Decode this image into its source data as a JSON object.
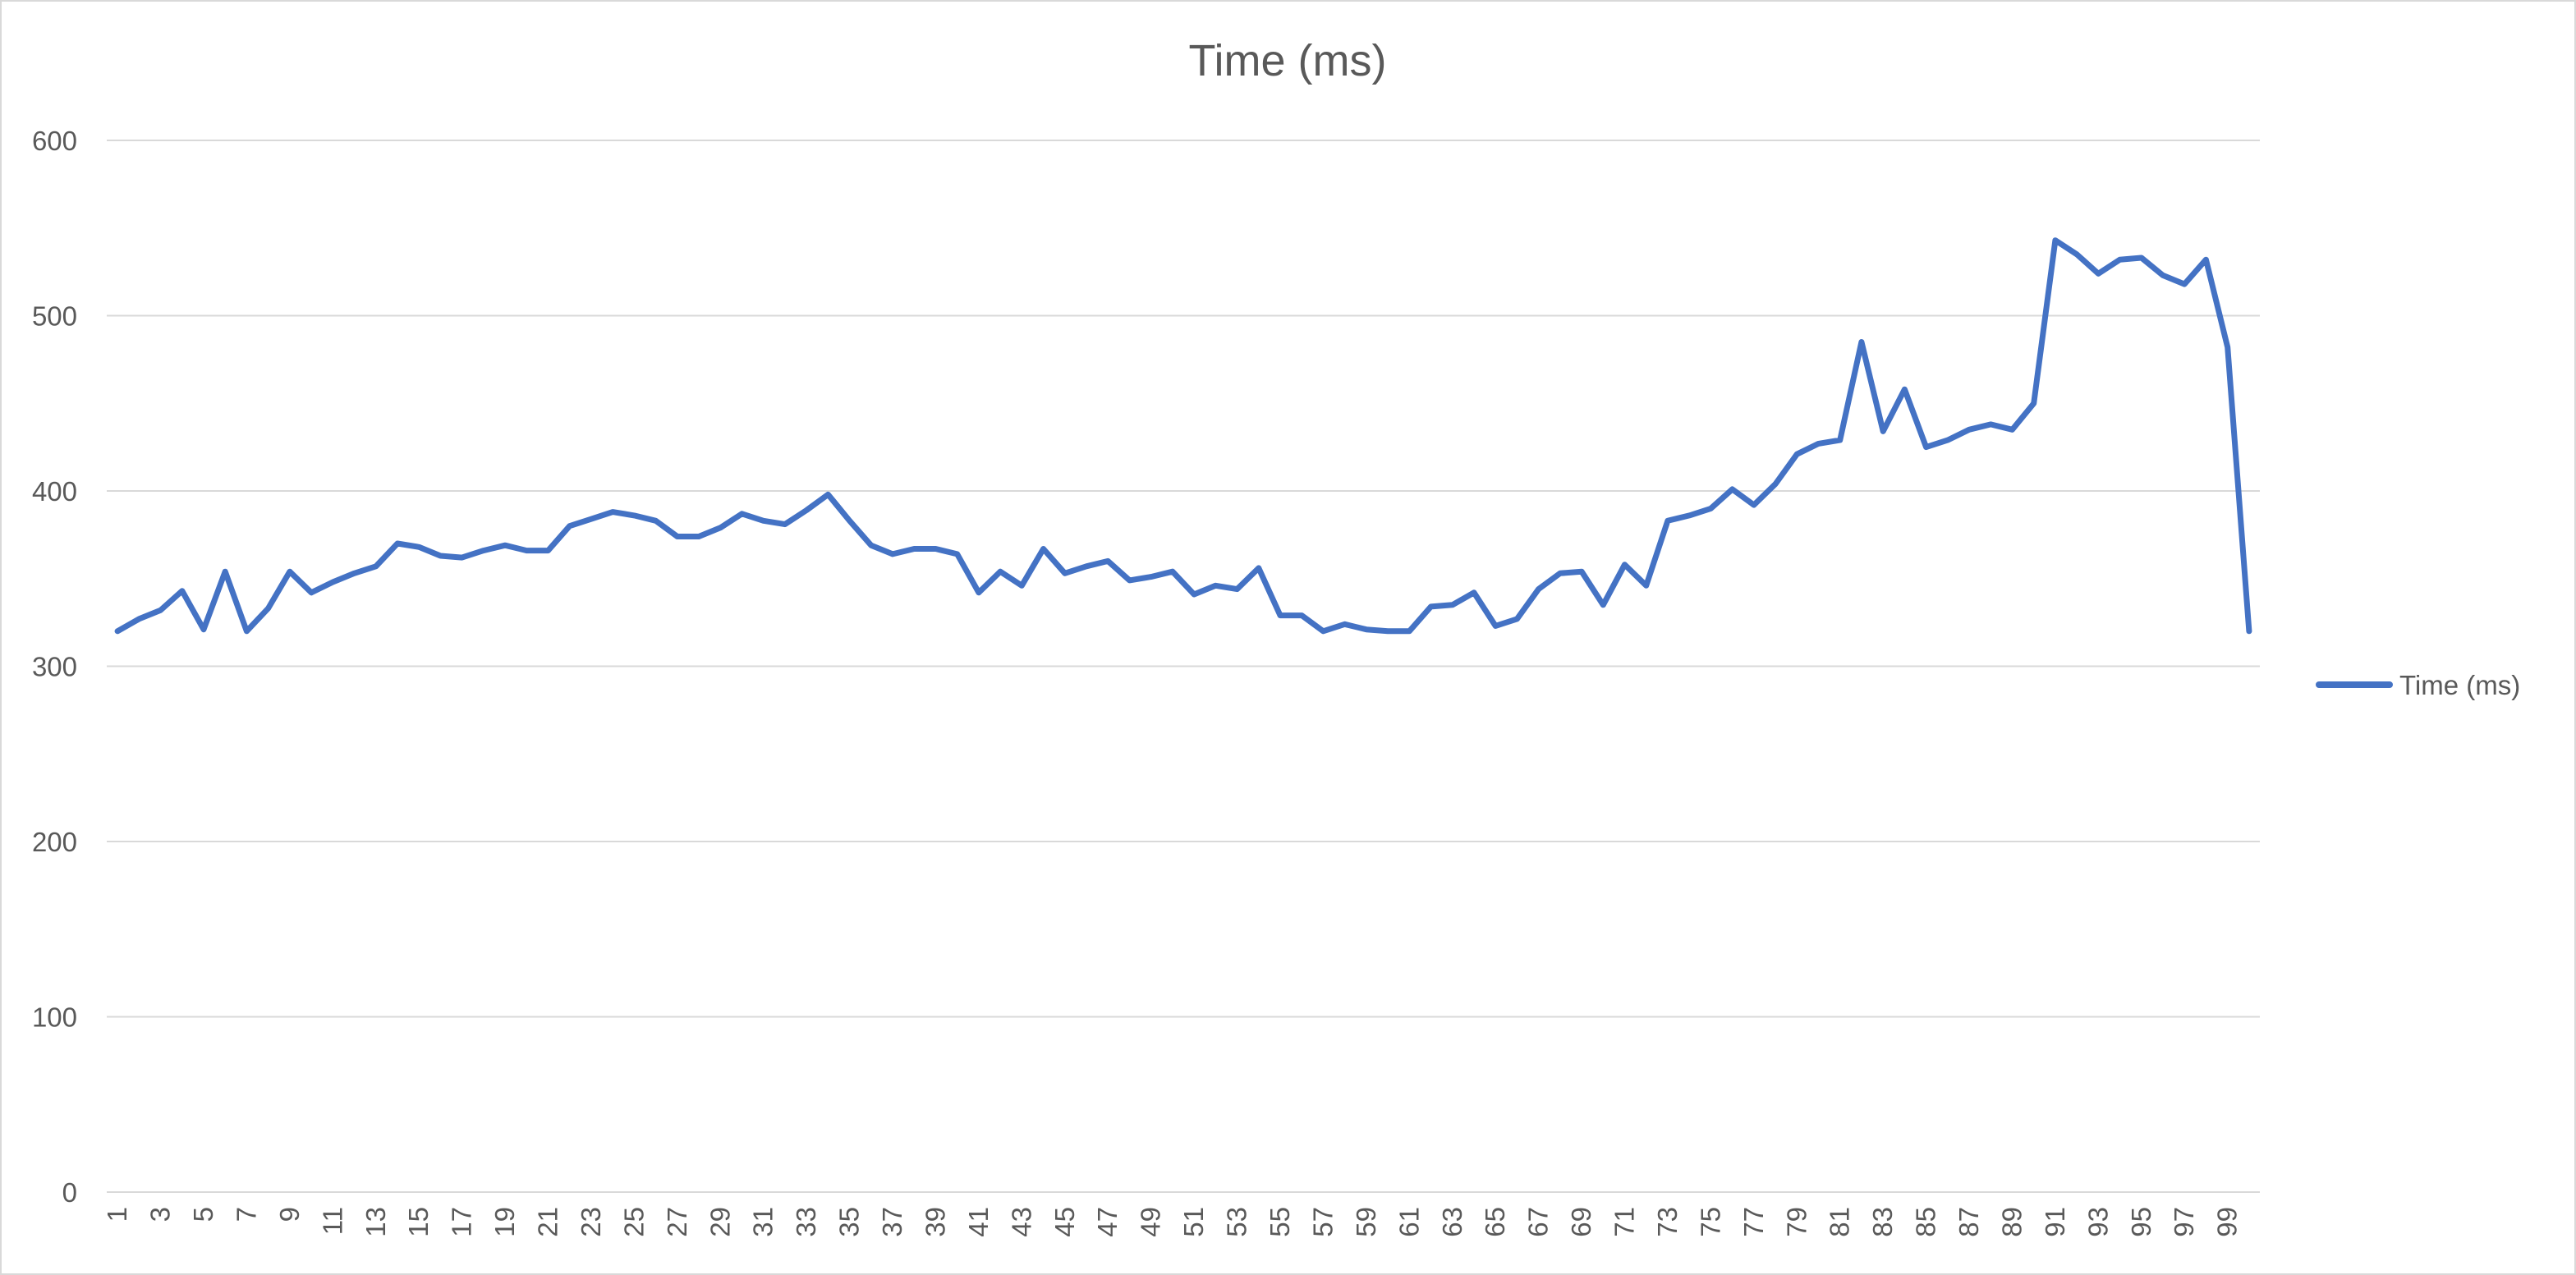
{
  "chart_data": {
    "type": "line",
    "title": "Time (ms)",
    "xlabel": "",
    "ylabel": "",
    "grid": true,
    "legend_position": "right",
    "ylim": [
      0,
      600
    ],
    "y_ticks": [
      0,
      100,
      200,
      300,
      400,
      500,
      600
    ],
    "x_tick_labels": [
      1,
      3,
      5,
      7,
      9,
      11,
      13,
      15,
      17,
      19,
      21,
      23,
      25,
      27,
      29,
      31,
      33,
      35,
      37,
      39,
      41,
      43,
      45,
      47,
      49,
      51,
      53,
      55,
      57,
      59,
      61,
      63,
      65,
      67,
      69,
      71,
      73,
      75,
      77,
      79,
      81,
      83,
      85,
      87,
      89,
      91,
      93,
      95,
      97,
      99
    ],
    "x": [
      1,
      2,
      3,
      4,
      5,
      6,
      7,
      8,
      9,
      10,
      11,
      12,
      13,
      14,
      15,
      16,
      17,
      18,
      19,
      20,
      21,
      22,
      23,
      24,
      25,
      26,
      27,
      28,
      29,
      30,
      31,
      32,
      33,
      34,
      35,
      36,
      37,
      38,
      39,
      40,
      41,
      42,
      43,
      44,
      45,
      46,
      47,
      48,
      49,
      50,
      51,
      52,
      53,
      54,
      55,
      56,
      57,
      58,
      59,
      60,
      61,
      62,
      63,
      64,
      65,
      66,
      67,
      68,
      69,
      70,
      71,
      72,
      73,
      74,
      75,
      76,
      77,
      78,
      79,
      80,
      81,
      82,
      83,
      84,
      85,
      86,
      87,
      88,
      89,
      90,
      91,
      92,
      93,
      94,
      95,
      96,
      97,
      98,
      99,
      100
    ],
    "series": [
      {
        "name": "Time (ms)",
        "color": "#4472C4",
        "values": [
          320,
          327,
          332,
          343,
          321,
          354,
          320,
          333,
          354,
          342,
          348,
          353,
          357,
          370,
          368,
          363,
          362,
          366,
          369,
          366,
          366,
          380,
          384,
          388,
          386,
          383,
          374,
          374,
          379,
          387,
          383,
          381,
          389,
          398,
          383,
          369,
          364,
          367,
          367,
          364,
          342,
          354,
          346,
          367,
          353,
          357,
          360,
          349,
          351,
          354,
          341,
          346,
          344,
          356,
          329,
          329,
          320,
          324,
          321,
          320,
          320,
          334,
          335,
          342,
          323,
          327,
          344,
          353,
          354,
          335,
          358,
          346,
          383,
          386,
          390,
          401,
          392,
          404,
          421,
          427,
          429,
          485,
          434,
          458,
          425,
          429,
          435,
          438,
          435,
          450,
          543,
          535,
          524,
          532,
          533,
          523,
          518,
          532,
          482,
          320
        ]
      }
    ]
  }
}
